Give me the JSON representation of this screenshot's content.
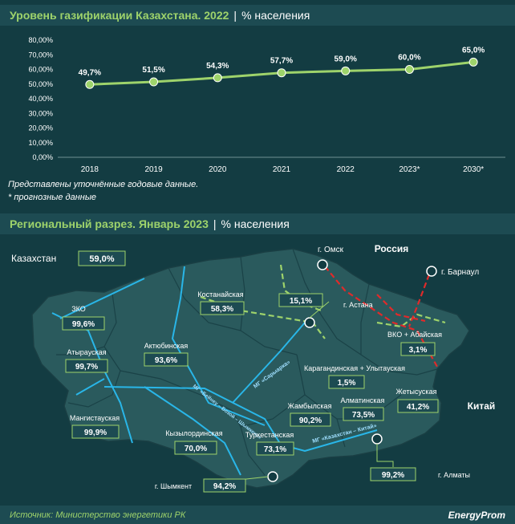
{
  "header": {
    "title": "Уровень газификации Казахстана. 2022",
    "sep": "|",
    "unit": "% населения"
  },
  "notes": {
    "line1": "Представлены уточнённые годовые данные.",
    "line2": "* прогнозные данные"
  },
  "chart_data": {
    "type": "line",
    "x": [
      "2018",
      "2019",
      "2020",
      "2021",
      "2022",
      "2023*",
      "2030*"
    ],
    "values": [
      49.7,
      51.5,
      54.3,
      57.7,
      59.0,
      60.0,
      65.0
    ],
    "value_labels": [
      "49,7%",
      "51,5%",
      "54,3%",
      "57,7%",
      "59,0%",
      "60,0%",
      "65,0%"
    ],
    "y_ticks": [
      "0,00%",
      "10,00%",
      "20,00%",
      "30,00%",
      "40,00%",
      "50,00%",
      "60,00%",
      "70,00%",
      "80,00%"
    ],
    "ylim": [
      0,
      80
    ],
    "grid": false,
    "line_color": "#9ed36b",
    "title": "Уровень газификации Казахстана. 2022"
  },
  "map_section": {
    "title": "Региональный разрез. Январь 2023",
    "sep": "|",
    "unit": "% населения",
    "country_label": "Казахстан",
    "country_value": "59,0%",
    "russia_label": "Россия",
    "china_label": "Китай",
    "regions": [
      {
        "name": "ЗКО",
        "value": "99,6%"
      },
      {
        "name": "Атырауская",
        "value": "99,7%"
      },
      {
        "name": "Мангистауская",
        "value": "99,9%"
      },
      {
        "name": "Актюбинская",
        "value": "93,6%"
      },
      {
        "name": "Костанайская",
        "value": "58,3%"
      },
      {
        "name": "г. Астана",
        "value": "15,1%"
      },
      {
        "name": "ВКО + Абайская",
        "value": "3,1%"
      },
      {
        "name": "Карагандинская + Улытауская",
        "value": "1,5%"
      },
      {
        "name": "Кызылординская",
        "value": "70,0%"
      },
      {
        "name": "Жамбылская",
        "value": "90,2%"
      },
      {
        "name": "Алматинская",
        "value": "73,5%"
      },
      {
        "name": "Жетысуская",
        "value": "41,2%"
      },
      {
        "name": "Туркестанская",
        "value": "73,1%"
      },
      {
        "name": "г. Шымкент",
        "value": "94,2%"
      },
      {
        "name": "г. Алматы",
        "value": "99,2%"
      }
    ],
    "cities": {
      "omsk": "г. Омск",
      "barnaul": "г. Барнаул"
    },
    "pipelines": {
      "saryarka": "МГ «Сарыарка»",
      "beineu": "МГ «Бейнеу – Бозой – Шымкент»",
      "kazchina": "МГ «Казахстан – Китай»"
    }
  },
  "footer": {
    "source": "Источник: Министерство энергетики РК",
    "brand": "EnergyProm"
  }
}
